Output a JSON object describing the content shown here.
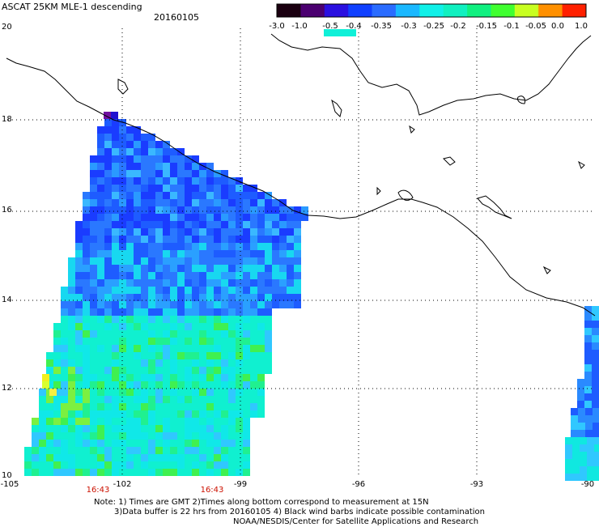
{
  "title": "ASCAT 25KM MLE-1 descending",
  "date": "20160105",
  "colorbar": {
    "labels": [
      "-3.0",
      "-1.0",
      "-0.5",
      "-0.4",
      "-0.35",
      "-0.3",
      "-0.25",
      "-0.2",
      "-0.15",
      "-0.1",
      "-0.05",
      "0.0",
      "1.0"
    ],
    "colors": [
      "#1a0010",
      "#4b0070",
      "#2a10e0",
      "#1040ff",
      "#2a6cff",
      "#1ab8ff",
      "#10f0e8",
      "#10f0c0",
      "#10f080",
      "#40ff30",
      "#c8ff20",
      "#ff9000",
      "#ff2000"
    ]
  },
  "map": {
    "lat_labels": [
      "20",
      "18",
      "16",
      "14",
      "12",
      "10"
    ],
    "lon_labels": [
      "-105",
      "-102",
      "-99",
      "-96",
      "-93",
      "-90"
    ],
    "time_labels": [
      "16:43",
      "16:43"
    ]
  },
  "notes": {
    "line1": "Note: 1) Times are GMT 2)Times along bottom correspond to measurement at 15N",
    "line2": "3)Data buffer is 22 hrs from 20160105 4) Black wind barbs indicate possible contamination",
    "line3": "NOAA/NESDIS/Center for Satellite Applications and Research"
  }
}
